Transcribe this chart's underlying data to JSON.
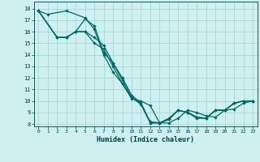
{
  "xlabel": "Humidex (Indice chaleur)",
  "background_color": "#cff0f0",
  "grid_color": "#a8d8d0",
  "line_color": "#006868",
  "spine_color": "#004040",
  "xlim": [
    -0.5,
    23.5
  ],
  "ylim": [
    7.8,
    18.6
  ],
  "xticks": [
    0,
    1,
    2,
    3,
    4,
    5,
    6,
    7,
    8,
    9,
    10,
    11,
    12,
    13,
    14,
    15,
    16,
    17,
    18,
    19,
    20,
    21,
    22,
    23
  ],
  "yticks": [
    8,
    9,
    10,
    11,
    12,
    13,
    14,
    15,
    16,
    17,
    18
  ],
  "lines": [
    {
      "x": [
        0,
        1,
        3,
        5,
        6,
        7,
        8,
        9,
        10,
        11,
        12,
        13,
        14,
        15,
        16,
        17,
        18,
        19,
        20,
        21,
        22,
        23
      ],
      "y": [
        17.8,
        17.5,
        17.8,
        17.2,
        16.2,
        14.0,
        12.5,
        11.5,
        10.2,
        10.0,
        9.6,
        8.1,
        8.1,
        8.5,
        9.2,
        9.0,
        8.7,
        8.6,
        9.2,
        9.3,
        9.8,
        10.0
      ]
    },
    {
      "x": [
        0,
        2,
        3,
        4,
        5,
        6,
        7,
        8,
        9,
        10,
        11,
        12,
        13,
        14,
        15,
        16,
        17,
        18,
        19,
        20,
        21,
        22,
        23
      ],
      "y": [
        17.8,
        15.5,
        15.5,
        16.0,
        17.1,
        16.5,
        14.2,
        13.3,
        11.8,
        10.3,
        9.8,
        8.1,
        8.1,
        8.4,
        9.2,
        9.0,
        8.6,
        8.5,
        9.2,
        9.2,
        9.8,
        10.0,
        10.0
      ]
    },
    {
      "x": [
        0,
        2,
        3,
        4,
        5,
        6,
        7,
        8,
        9,
        10,
        11,
        12,
        13,
        14,
        15,
        16,
        17,
        18,
        19,
        20,
        21,
        22,
        23
      ],
      "y": [
        17.8,
        15.5,
        15.5,
        16.0,
        16.0,
        15.5,
        14.8,
        13.3,
        12.0,
        10.5,
        9.8,
        8.2,
        8.1,
        8.5,
        9.2,
        9.0,
        8.6,
        8.5,
        9.2,
        9.2,
        9.8,
        10.0,
        10.0
      ]
    },
    {
      "x": [
        0,
        2,
        3,
        4,
        5,
        6,
        7,
        8,
        9,
        10,
        11,
        12,
        13,
        14,
        15,
        16,
        17,
        18,
        19,
        20,
        21,
        22,
        23
      ],
      "y": [
        17.8,
        15.5,
        15.5,
        16.0,
        16.0,
        15.0,
        14.5,
        13.0,
        11.5,
        10.3,
        9.7,
        8.1,
        8.1,
        8.4,
        9.2,
        9.0,
        8.5,
        8.5,
        9.2,
        9.2,
        9.8,
        10.0,
        10.0
      ]
    }
  ]
}
